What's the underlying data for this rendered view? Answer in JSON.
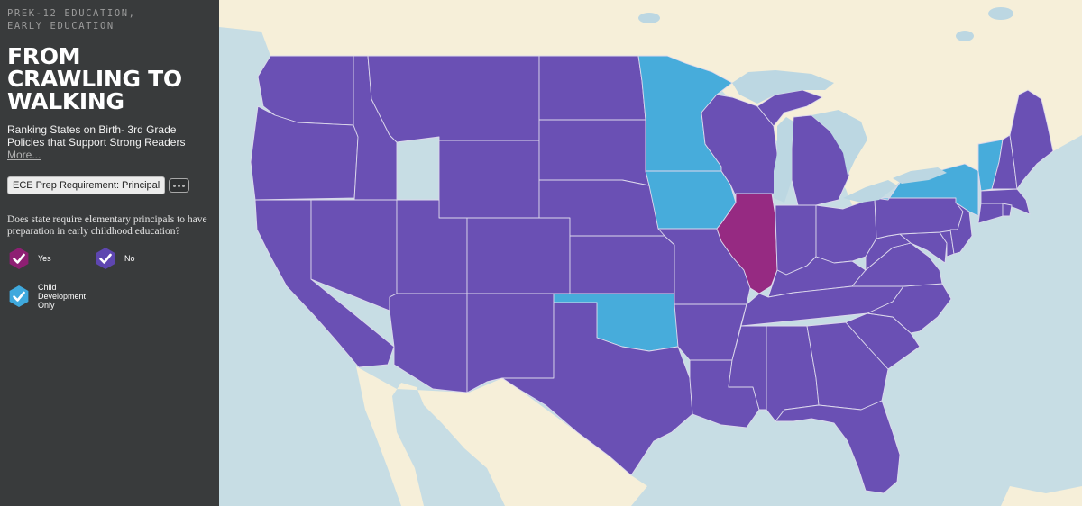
{
  "sidebar": {
    "kicker": [
      "PREK-12 EDUCATION,",
      "EARLY EDUCATION"
    ],
    "title": [
      "FROM",
      "CRAWLING TO",
      "WALKING"
    ],
    "subtitle": "Ranking States on Birth- 3rd Grade Policies that Support Strong Readers",
    "more_label": "More...",
    "layer_label": "ECE Prep Requirement: Principal",
    "question": "Does state require elementary principals to have preparation in early childhood education?"
  },
  "legend": [
    {
      "key": "yes",
      "label": "Yes",
      "color": "#8e1f73"
    },
    {
      "key": "no",
      "label": "No",
      "color": "#5e46b0"
    },
    {
      "key": "child_dev",
      "label": "Child Development Only",
      "color": "#3fa9dd"
    }
  ],
  "map": {
    "colors": {
      "yes": "#962a82",
      "no": "#6a50b4",
      "child_dev": "#47acdb",
      "land": "#f6efd9",
      "water": "#c7dde4",
      "lakes": "#bcd7e2"
    },
    "states": {
      "WA": "no",
      "OR": "no",
      "CA": "no",
      "ID": "no",
      "NV": "no",
      "MT": "no",
      "WY": "no",
      "UT": "no",
      "AZ": "no",
      "CO": "no",
      "NM": "no",
      "ND": "no",
      "SD": "no",
      "NE": "no",
      "KS": "no",
      "OK": "child_dev",
      "TX": "no",
      "MN": "child_dev",
      "IA": "child_dev",
      "MO": "no",
      "AR": "no",
      "LA": "no",
      "WI": "no",
      "IL": "yes",
      "MI": "no",
      "IN": "no",
      "OH": "no",
      "KY": "no",
      "TN": "no",
      "MS": "no",
      "AL": "no",
      "GA": "no",
      "FL": "no",
      "SC": "no",
      "NC": "no",
      "VA": "no",
      "WV": "no",
      "MD": "no",
      "DE": "no",
      "PA": "no",
      "NJ": "no",
      "NY": "child_dev",
      "CT": "no",
      "RI": "no",
      "MA": "no",
      "VT": "child_dev",
      "NH": "no",
      "ME": "no"
    }
  }
}
